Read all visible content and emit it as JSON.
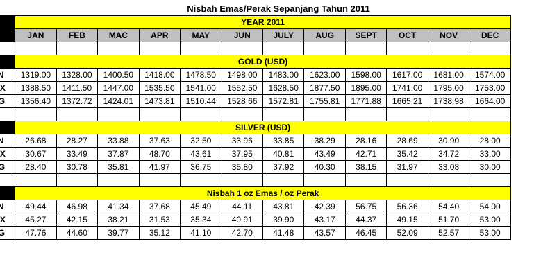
{
  "title": "Nisbah Emas/Perak Sepanjang Tahun 2011",
  "year_label": "YEAR 2011",
  "months": [
    "JAN",
    "FEB",
    "MAC",
    "APR",
    "MAY",
    "JUN",
    "JULY",
    "AUG",
    "SEPT",
    "OCT",
    "NOV",
    "DEC"
  ],
  "row_labels": [
    "MIN",
    "MAX",
    "AVG"
  ],
  "sections": [
    {
      "heading": "GOLD (USD)",
      "rows": [
        [
          "1319.00",
          "1328.00",
          "1400.50",
          "1418.00",
          "1478.50",
          "1498.00",
          "1483.00",
          "1623.00",
          "1598.00",
          "1617.00",
          "1681.00",
          "1574.00"
        ],
        [
          "1388.50",
          "1411.50",
          "1447.00",
          "1535.50",
          "1541.00",
          "1552.50",
          "1628.50",
          "1877.50",
          "1895.00",
          "1741.00",
          "1795.00",
          "1753.00"
        ],
        [
          "1356.40",
          "1372.72",
          "1424.01",
          "1473.81",
          "1510.44",
          "1528.66",
          "1572.81",
          "1755.81",
          "1771.88",
          "1665.21",
          "1738.98",
          "1664.00"
        ]
      ]
    },
    {
      "heading": "SILVER (USD)",
      "rows": [
        [
          "26.68",
          "28.27",
          "33.88",
          "37.63",
          "32.50",
          "33.96",
          "33.85",
          "38.29",
          "28.16",
          "28.69",
          "30.90",
          "28.00"
        ],
        [
          "30.67",
          "33.49",
          "37.87",
          "48.70",
          "43.61",
          "37.95",
          "40.81",
          "43.49",
          "42.71",
          "35.42",
          "34.72",
          "33.00"
        ],
        [
          "28.40",
          "30.78",
          "35.81",
          "41.97",
          "36.75",
          "35.80",
          "37.92",
          "40.30",
          "38.15",
          "31.97",
          "33.08",
          "30.00"
        ]
      ]
    },
    {
      "heading": "Nisbah 1 oz Emas / oz Perak",
      "rows": [
        [
          "49.44",
          "46.98",
          "41.34",
          "37.68",
          "45.49",
          "44.11",
          "43.81",
          "42.39",
          "56.75",
          "56.36",
          "54.40",
          "54.00"
        ],
        [
          "45.27",
          "42.15",
          "38.21",
          "31.53",
          "35.34",
          "40.91",
          "39.90",
          "43.17",
          "44.37",
          "49.15",
          "51.70",
          "53.00"
        ],
        [
          "47.76",
          "44.60",
          "39.77",
          "35.12",
          "41.10",
          "42.70",
          "41.48",
          "43.57",
          "46.45",
          "52.09",
          "52.57",
          "53.00"
        ]
      ]
    }
  ]
}
